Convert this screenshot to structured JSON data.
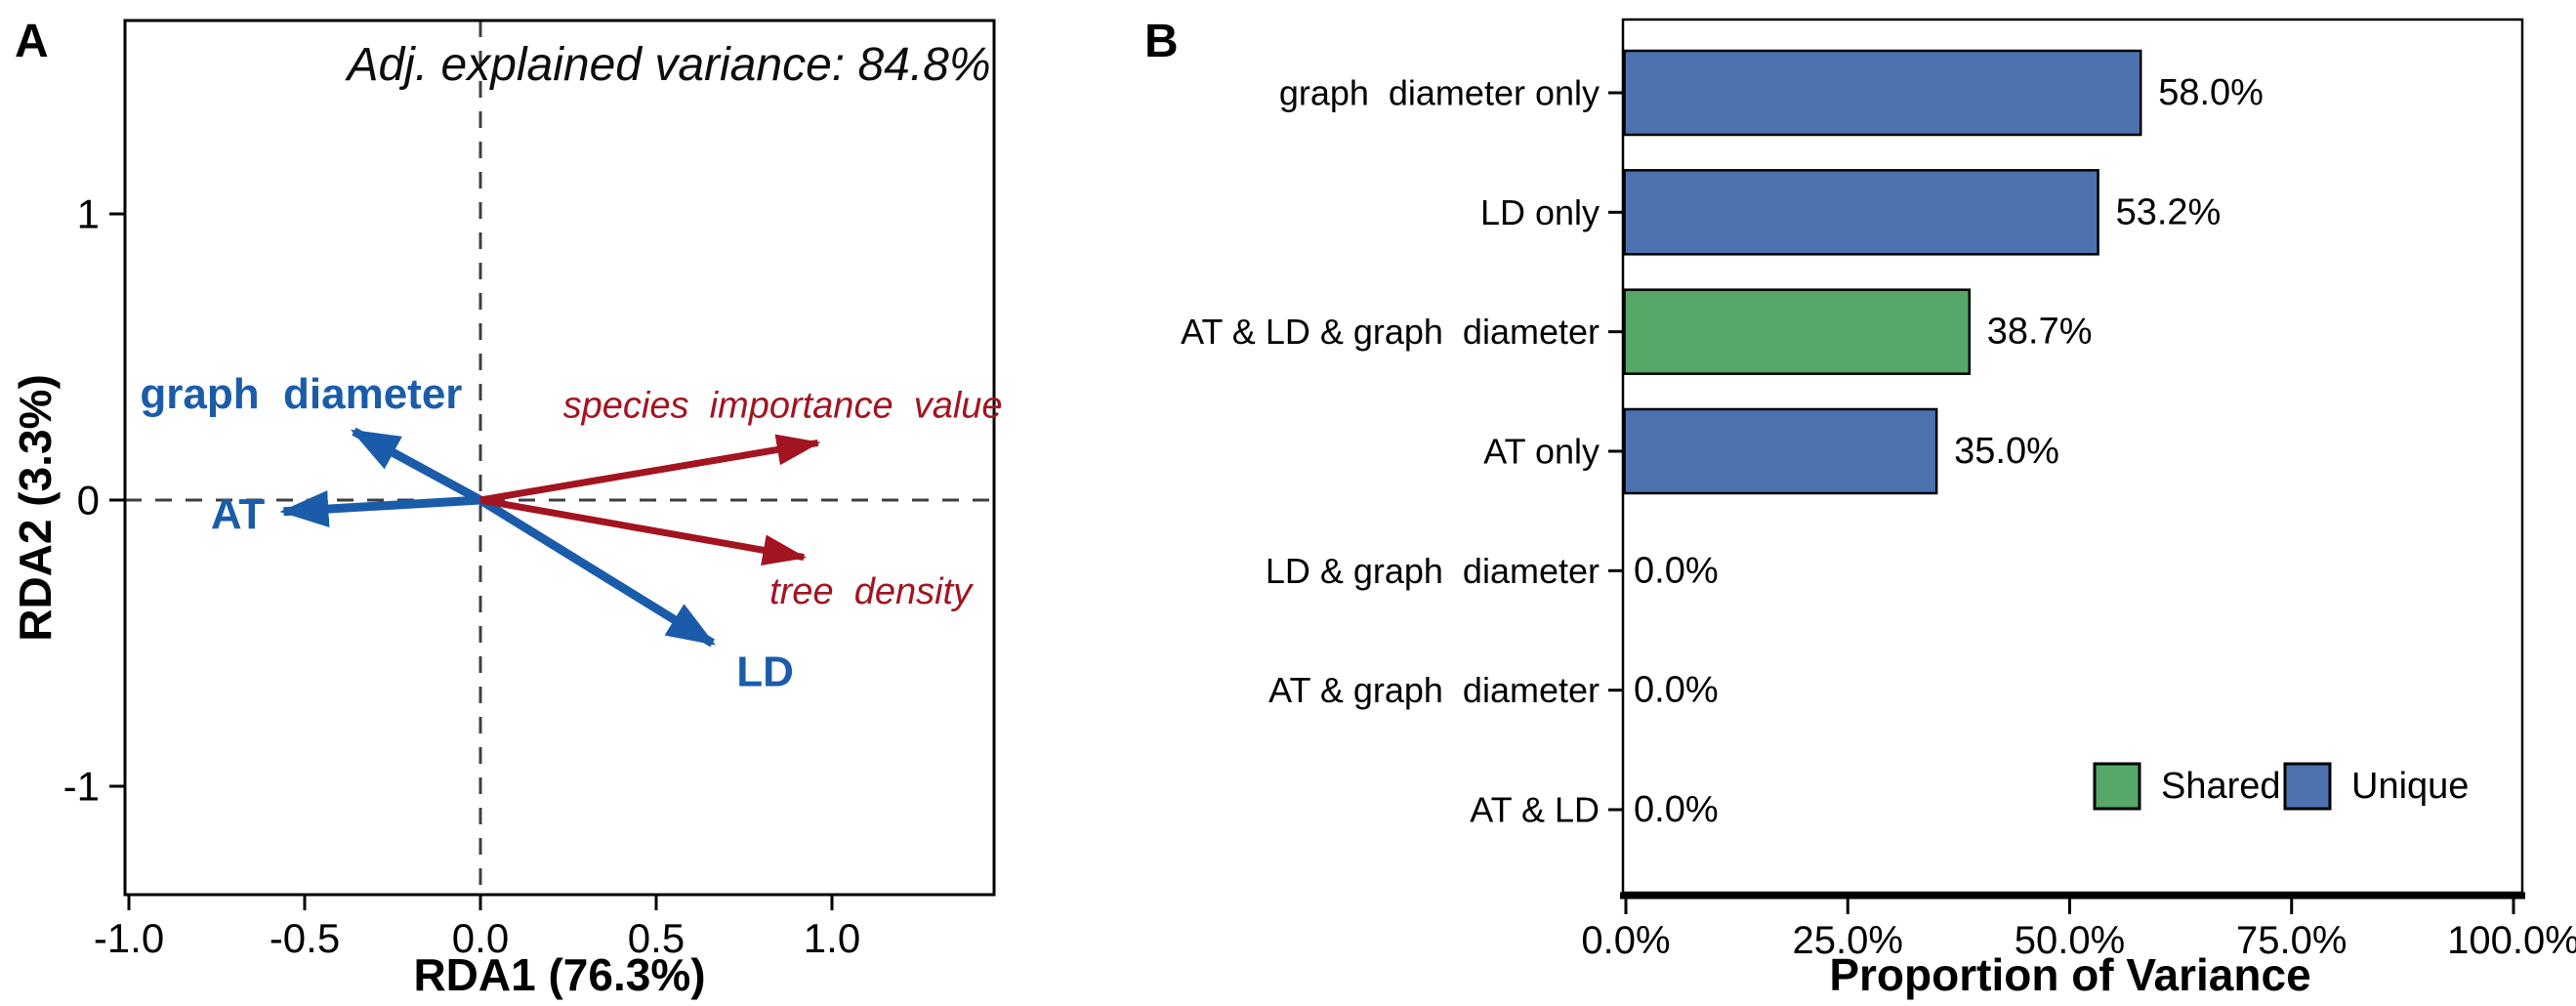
{
  "chart_data": [
    {
      "panel_label": "A",
      "type": "scatter",
      "subtype": "rda-biplot-arrows",
      "title": "Adj. explained variance: 84.8%",
      "xlabel": "RDA1 (76.3%)",
      "ylabel": "RDA2 (3.3%)",
      "xlim": [
        -1.01,
        1.46
      ],
      "ylim": [
        -1.37,
        1.68
      ],
      "grid": false,
      "zero_lines": "dashed crosshair at x=0 and y=0",
      "xticks": {
        "values": [
          -1.0,
          -0.5,
          0.0,
          0.5,
          1.0
        ],
        "labels": [
          "-1.0",
          "-0.5",
          "0.0",
          "0.5",
          "1.0"
        ]
      },
      "yticks": {
        "values": [
          1,
          0,
          -1
        ],
        "labels": [
          "1",
          "0",
          "-1"
        ]
      },
      "arrow_groups": [
        {
          "name": "predictors",
          "color": "#1b5caa",
          "text_style": "bold",
          "arrows": [
            {
              "label": "graph  diameter",
              "x": -0.36,
              "y": 0.24,
              "label_x": -0.51,
              "label_y": 0.37
            },
            {
              "label": "AT",
              "x": -0.56,
              "y": -0.04,
              "label_x": -0.69,
              "label_y": -0.05
            },
            {
              "label": "LD",
              "x": 0.66,
              "y": -0.5,
              "label_x": 0.81,
              "label_y": -0.6
            }
          ]
        },
        {
          "name": "responses",
          "color": "#a21420",
          "text_style": "italic",
          "arrows": [
            {
              "label": "species  importance  value",
              "x": 0.96,
              "y": 0.2,
              "label_x": 0.86,
              "label_y": 0.33
            },
            {
              "label": "tree  density",
              "x": 0.92,
              "y": -0.2,
              "label_x": 1.11,
              "label_y": -0.32
            }
          ]
        }
      ]
    },
    {
      "panel_label": "B",
      "type": "bar",
      "orientation": "horizontal",
      "categories": [
        "graph  diameter only",
        "LD only",
        "AT & LD & graph  diameter",
        "AT only",
        "LD & graph  diameter",
        "AT & graph  diameter",
        "AT & LD"
      ],
      "values": [
        58.0,
        53.2,
        38.7,
        35.0,
        0.0,
        0.0,
        0.0
      ],
      "value_labels": [
        "58.0%",
        "53.2%",
        "38.7%",
        "35.0%",
        "0.0%",
        "0.0%",
        "0.0%"
      ],
      "bar_types": [
        "Unique",
        "Unique",
        "Shared",
        "Unique",
        "Shared",
        "Shared",
        "Shared"
      ],
      "colors": {
        "Shared": "#55A868",
        "Unique": "#4C72B0"
      },
      "bar_border_color": "#000000",
      "xlabel": "Proportion of Variance",
      "xlim": [
        0,
        100
      ],
      "xticks": {
        "values": [
          0,
          25,
          50,
          75,
          100
        ],
        "labels": [
          "0.0%",
          "25.0%",
          "50.0%",
          "75.0%",
          "100.0%"
        ]
      },
      "grid": false,
      "legend_position": "inside bottom-right",
      "legend": [
        {
          "label": "Shared",
          "color": "#55A868"
        },
        {
          "label": "Unique",
          "color": "#4C72B0"
        }
      ]
    }
  ],
  "palette": {
    "predictor_blue": "#1b5caa",
    "response_red": "#a21420",
    "bar_blue": "#4C72B0",
    "bar_green": "#55A868",
    "dashed_gray": "#3f3f3f",
    "axis_black": "#000000",
    "background": "#ffffff"
  }
}
